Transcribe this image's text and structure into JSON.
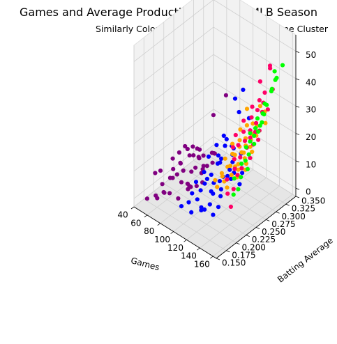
{
  "chart_data": {
    "type": "scatter",
    "projection": "3d",
    "title": "Games and Average Production for 2019 MLB Season",
    "subtitle": "Similarly Colored Data Points Belong to Same Cluster",
    "xlabel": "Games",
    "ylabel": "Batting Average",
    "zlabel": "",
    "xlim": [
      40,
      165
    ],
    "ylim": [
      0.15,
      0.35
    ],
    "zlim": [
      -3,
      56
    ],
    "xticks": [
      "40",
      "60",
      "80",
      "100",
      "120",
      "140",
      "160"
    ],
    "yticks": [
      "0.150",
      "0.175",
      "0.200",
      "0.225",
      "0.250",
      "0.275",
      "0.300",
      "0.325",
      "0.350"
    ],
    "zticks": [
      "0",
      "10",
      "20",
      "30",
      "40",
      "50"
    ],
    "grid": true,
    "series": [
      {
        "name": "cluster-purple",
        "color": "#800080",
        "points": [
          [
            44,
            0.21,
            4
          ],
          [
            48,
            0.19,
            6
          ],
          [
            50,
            0.232,
            3
          ],
          [
            52,
            0.244,
            8
          ],
          [
            54,
            0.198,
            2
          ],
          [
            55,
            0.265,
            5
          ],
          [
            56,
            0.221,
            9
          ],
          [
            57,
            0.281,
            6
          ],
          [
            58,
            0.175,
            1
          ],
          [
            59,
            0.247,
            11
          ],
          [
            60,
            0.208,
            4
          ],
          [
            61,
            0.29,
            3
          ],
          [
            62,
            0.231,
            7
          ],
          [
            63,
            0.26,
            10
          ],
          [
            64,
            0.185,
            2
          ],
          [
            65,
            0.217,
            5
          ],
          [
            66,
            0.272,
            8
          ],
          [
            67,
            0.24,
            12
          ],
          [
            68,
            0.162,
            3
          ],
          [
            69,
            0.226,
            6
          ],
          [
            70,
            0.301,
            4
          ],
          [
            70,
            0.25,
            9
          ],
          [
            71,
            0.196,
            7
          ],
          [
            72,
            0.27,
            2
          ],
          [
            73,
            0.212,
            11
          ],
          [
            74,
            0.238,
            5
          ],
          [
            75,
            0.256,
            8
          ],
          [
            76,
            0.18,
            4
          ],
          [
            77,
            0.285,
            7
          ],
          [
            78,
            0.222,
            3
          ],
          [
            79,
            0.248,
            10
          ],
          [
            80,
            0.203,
            6
          ],
          [
            81,
            0.266,
            5
          ],
          [
            82,
            0.235,
            8
          ],
          [
            83,
            0.19,
            2
          ],
          [
            84,
            0.252,
            7
          ],
          [
            85,
            0.215,
            4
          ],
          [
            86,
            0.277,
            9
          ],
          [
            87,
            0.242,
            6
          ],
          [
            88,
            0.228,
            3
          ],
          [
            65,
            0.34,
            20
          ],
          [
            58,
            0.32,
            14
          ],
          [
            90,
            0.21,
            5
          ],
          [
            91,
            0.263,
            8
          ],
          [
            92,
            0.236,
            4
          ],
          [
            93,
            0.198,
            6
          ],
          [
            60,
            0.15,
            3
          ],
          [
            74,
            0.17,
            5
          ]
        ]
      },
      {
        "name": "cluster-blue",
        "color": "#0000ff",
        "points": [
          [
            92,
            0.22,
            6
          ],
          [
            93,
            0.25,
            12
          ],
          [
            94,
            0.28,
            8
          ],
          [
            95,
            0.205,
            4
          ],
          [
            96,
            0.265,
            15
          ],
          [
            97,
            0.232,
            9
          ],
          [
            98,
            0.3,
            11
          ],
          [
            99,
            0.19,
            3
          ],
          [
            100,
            0.245,
            7
          ],
          [
            101,
            0.275,
            18
          ],
          [
            102,
            0.215,
            5
          ],
          [
            103,
            0.258,
            13
          ],
          [
            104,
            0.228,
            8
          ],
          [
            105,
            0.29,
            10
          ],
          [
            106,
            0.2,
            4
          ],
          [
            107,
            0.268,
            16
          ],
          [
            108,
            0.238,
            6
          ],
          [
            109,
            0.252,
            12
          ],
          [
            110,
            0.212,
            9
          ],
          [
            111,
            0.283,
            14
          ],
          [
            112,
            0.225,
            5
          ],
          [
            113,
            0.262,
            20
          ],
          [
            114,
            0.243,
            7
          ],
          [
            115,
            0.195,
            3
          ],
          [
            116,
            0.272,
            11
          ],
          [
            117,
            0.233,
            15
          ],
          [
            118,
            0.256,
            8
          ],
          [
            119,
            0.218,
            6
          ],
          [
            120,
            0.287,
            13
          ],
          [
            121,
            0.24,
            10
          ],
          [
            122,
            0.205,
            4
          ],
          [
            123,
            0.264,
            9
          ],
          [
            124,
            0.23,
            7
          ],
          [
            125,
            0.25,
            12
          ],
          [
            126,
            0.185,
            5
          ],
          [
            127,
            0.278,
            8
          ],
          [
            128,
            0.222,
            6
          ],
          [
            130,
            0.245,
            10
          ],
          [
            132,
            0.21,
            4
          ],
          [
            134,
            0.26,
            7
          ],
          [
            97,
            0.31,
            27
          ],
          [
            103,
            0.32,
            30
          ],
          [
            109,
            0.3,
            25
          ],
          [
            115,
            0.315,
            22
          ],
          [
            100,
            0.17,
            4
          ],
          [
            112,
            0.175,
            3
          ],
          [
            124,
            0.18,
            5
          ],
          [
            136,
            0.19,
            4
          ]
        ]
      },
      {
        "name": "cluster-orange",
        "color": "#ffa500",
        "points": [
          [
            115,
            0.255,
            14
          ],
          [
            117,
            0.27,
            18
          ],
          [
            119,
            0.24,
            11
          ],
          [
            120,
            0.285,
            22
          ],
          [
            122,
            0.262,
            16
          ],
          [
            123,
            0.248,
            13
          ],
          [
            125,
            0.275,
            20
          ],
          [
            126,
            0.23,
            12
          ],
          [
            127,
            0.29,
            24
          ],
          [
            128,
            0.258,
            17
          ],
          [
            129,
            0.268,
            19
          ],
          [
            130,
            0.243,
            15
          ],
          [
            131,
            0.28,
            21
          ],
          [
            132,
            0.252,
            14
          ],
          [
            133,
            0.295,
            25
          ],
          [
            134,
            0.265,
            18
          ],
          [
            135,
            0.238,
            13
          ],
          [
            136,
            0.272,
            20
          ],
          [
            137,
            0.285,
            23
          ],
          [
            138,
            0.25,
            16
          ],
          [
            139,
            0.262,
            19
          ],
          [
            140,
            0.278,
            22
          ],
          [
            141,
            0.245,
            15
          ],
          [
            142,
            0.29,
            26
          ],
          [
            143,
            0.258,
            18
          ],
          [
            144,
            0.27,
            21
          ],
          [
            145,
            0.235,
            14
          ],
          [
            146,
            0.282,
            24
          ],
          [
            147,
            0.255,
            17
          ],
          [
            148,
            0.268,
            20
          ],
          [
            149,
            0.3,
            27
          ],
          [
            150,
            0.248,
            16
          ],
          [
            118,
            0.225,
            10
          ],
          [
            124,
            0.22,
            9
          ],
          [
            130,
            0.228,
            11
          ],
          [
            136,
            0.225,
            10
          ],
          [
            121,
            0.3,
            28
          ],
          [
            135,
            0.31,
            30
          ],
          [
            142,
            0.31,
            29
          ]
        ]
      },
      {
        "name": "cluster-pink",
        "color": "#ff0066",
        "points": [
          [
            128,
            0.26,
            24
          ],
          [
            131,
            0.275,
            28
          ],
          [
            133,
            0.245,
            22
          ],
          [
            135,
            0.29,
            32
          ],
          [
            137,
            0.265,
            26
          ],
          [
            138,
            0.25,
            23
          ],
          [
            140,
            0.28,
            30
          ],
          [
            141,
            0.235,
            20
          ],
          [
            143,
            0.295,
            35
          ],
          [
            144,
            0.27,
            27
          ],
          [
            145,
            0.255,
            25
          ],
          [
            146,
            0.285,
            33
          ],
          [
            147,
            0.24,
            21
          ],
          [
            148,
            0.3,
            38
          ],
          [
            149,
            0.262,
            26
          ],
          [
            150,
            0.275,
            30
          ],
          [
            151,
            0.25,
            24
          ],
          [
            152,
            0.29,
            36
          ],
          [
            153,
            0.268,
            28
          ],
          [
            154,
            0.232,
            19
          ],
          [
            155,
            0.282,
            34
          ],
          [
            156,
            0.258,
            25
          ],
          [
            157,
            0.305,
            40
          ],
          [
            158,
            0.27,
            29
          ],
          [
            159,
            0.245,
            22
          ],
          [
            160,
            0.288,
            35
          ],
          [
            161,
            0.262,
            27
          ],
          [
            150,
            0.31,
            47
          ],
          [
            144,
            0.32,
            44
          ],
          [
            138,
            0.305,
            40
          ],
          [
            155,
            0.21,
            14
          ],
          [
            149,
            0.205,
            12
          ],
          [
            160,
            0.195,
            10
          ],
          [
            142,
            0.215,
            15
          ],
          [
            152,
            0.225,
            17
          ],
          [
            146,
            0.228,
            18
          ]
        ]
      },
      {
        "name": "cluster-green",
        "color": "#00ff00",
        "points": [
          [
            150,
            0.26,
            28
          ],
          [
            152,
            0.275,
            32
          ],
          [
            153,
            0.245,
            25
          ],
          [
            154,
            0.29,
            36
          ],
          [
            155,
            0.265,
            30
          ],
          [
            156,
            0.25,
            27
          ],
          [
            157,
            0.28,
            34
          ],
          [
            158,
            0.235,
            22
          ],
          [
            158,
            0.3,
            40
          ],
          [
            159,
            0.27,
            31
          ],
          [
            159,
            0.255,
            29
          ],
          [
            160,
            0.285,
            37
          ],
          [
            160,
            0.24,
            24
          ],
          [
            161,
            0.305,
            44
          ],
          [
            161,
            0.262,
            30
          ],
          [
            162,
            0.275,
            35
          ],
          [
            162,
            0.25,
            27
          ],
          [
            162,
            0.295,
            42
          ],
          [
            163,
            0.268,
            33
          ],
          [
            163,
            0.232,
            20
          ],
          [
            157,
            0.31,
            46
          ],
          [
            155,
            0.23,
            21
          ],
          [
            160,
            0.22,
            18
          ],
          [
            153,
            0.215,
            17
          ],
          [
            162,
            0.21,
            15
          ],
          [
            158,
            0.205,
            13
          ],
          [
            163,
            0.32,
            48
          ],
          [
            154,
            0.32,
            42
          ]
        ]
      }
    ]
  }
}
